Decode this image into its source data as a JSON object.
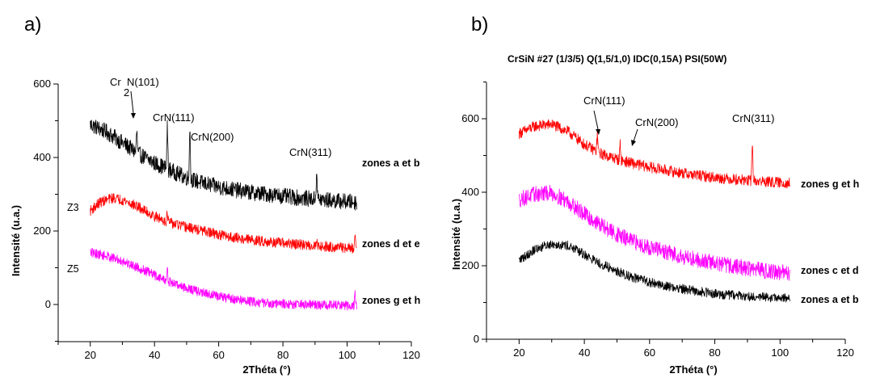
{
  "chart_data": [
    {
      "type": "line",
      "panel_label": "a)",
      "title": "",
      "xlabel": "2Théta (°)",
      "ylabel": "Intensité (u.a.)",
      "xlim": [
        10,
        120
      ],
      "ylim": [
        -100,
        600
      ],
      "x_ticks": [
        20,
        40,
        60,
        80,
        100,
        120
      ],
      "y_ticks": [
        0,
        200,
        400,
        600
      ],
      "grid": false,
      "legend": "none",
      "series": [
        {
          "name": "zones a et b",
          "color": "#000000",
          "x_range": [
            20,
            103
          ],
          "points": [
            [
              20,
              490
            ],
            [
              25,
              470
            ],
            [
              30,
              440
            ],
            [
              35,
              410
            ],
            [
              40,
              385
            ],
            [
              45,
              365
            ],
            [
              50,
              345
            ],
            [
              55,
              330
            ],
            [
              60,
              320
            ],
            [
              65,
              312
            ],
            [
              70,
              305
            ],
            [
              75,
              300
            ],
            [
              80,
              295
            ],
            [
              85,
              290
            ],
            [
              90,
              287
            ],
            [
              95,
              283
            ],
            [
              100,
              280
            ],
            [
              103,
              278
            ]
          ],
          "noise": 22,
          "peaks": [
            [
              34.5,
              60
            ],
            [
              44,
              120
            ],
            [
              51,
              150
            ],
            [
              90.5,
              85
            ]
          ]
        },
        {
          "name": "zones d et e",
          "color": "#ff0000",
          "x_range": [
            20,
            103
          ],
          "points": [
            [
              20,
              255
            ],
            [
              23,
              278
            ],
            [
              27,
              290
            ],
            [
              30,
              285
            ],
            [
              35,
              265
            ],
            [
              40,
              240
            ],
            [
              45,
              222
            ],
            [
              50,
              210
            ],
            [
              55,
              200
            ],
            [
              60,
              190
            ],
            [
              65,
              182
            ],
            [
              70,
              176
            ],
            [
              75,
              171
            ],
            [
              80,
              167
            ],
            [
              85,
              163
            ],
            [
              90,
              160
            ],
            [
              95,
              157
            ],
            [
              100,
              154
            ],
            [
              103,
              152
            ]
          ],
          "noise": 14,
          "peaks": [
            [
              44,
              25
            ],
            [
              90.5,
              20
            ],
            [
              102.5,
              40
            ]
          ]
        },
        {
          "name": "zones g et h",
          "color": "#ff00ff",
          "x_range": [
            20,
            103
          ],
          "points": [
            [
              20,
              142
            ],
            [
              25,
              132
            ],
            [
              30,
              118
            ],
            [
              35,
              100
            ],
            [
              40,
              80
            ],
            [
              45,
              60
            ],
            [
              50,
              45
            ],
            [
              55,
              32
            ],
            [
              60,
              22
            ],
            [
              65,
              14
            ],
            [
              70,
              8
            ],
            [
              75,
              4
            ],
            [
              80,
              2
            ],
            [
              85,
              0
            ],
            [
              90,
              -1
            ],
            [
              95,
              -2
            ],
            [
              100,
              -3
            ],
            [
              103,
              -3
            ]
          ],
          "noise": 13,
          "peaks": [
            [
              44,
              30
            ],
            [
              102.5,
              40
            ]
          ]
        }
      ],
      "series_label_pos": [
        [
          300
        ],
        [
          165
        ],
        [
          40
        ]
      ],
      "annotations": [
        "Cr",
        "N(101)",
        "2",
        "CrN(111)",
        "CrN(200)",
        "CrN(311)"
      ],
      "side_labels": [
        "Z3",
        "Z5"
      ]
    },
    {
      "type": "line",
      "panel_label": "b)",
      "title": "CrSiN #27 (1/3/5) Q(1,5/1,0) IDC(0,15A) PSI(50W)",
      "xlabel": "2Théta (°)",
      "ylabel": "Intensité (u.a.)",
      "xlim": [
        10,
        120
      ],
      "ylim": [
        0,
        700
      ],
      "x_ticks": [
        20,
        40,
        60,
        80,
        100,
        120
      ],
      "y_ticks": [
        0,
        200,
        400,
        600
      ],
      "grid": false,
      "legend": "none",
      "series": [
        {
          "name": "zones g et h",
          "color": "#ff0000",
          "x_range": [
            20,
            103
          ],
          "points": [
            [
              20,
              560
            ],
            [
              25,
              580
            ],
            [
              30,
              585
            ],
            [
              35,
              565
            ],
            [
              40,
              530
            ],
            [
              45,
              505
            ],
            [
              50,
              490
            ],
            [
              55,
              478
            ],
            [
              60,
              468
            ],
            [
              65,
              460
            ],
            [
              70,
              452
            ],
            [
              75,
              446
            ],
            [
              80,
              440
            ],
            [
              85,
              436
            ],
            [
              90,
              432
            ],
            [
              95,
              429
            ],
            [
              100,
              426
            ],
            [
              103,
              425
            ]
          ],
          "noise": 15,
          "peaks": [
            [
              44,
              50
            ],
            [
              51,
              45
            ],
            [
              91.5,
              115
            ]
          ]
        },
        {
          "name": "zones c et d",
          "color": "#ff00ff",
          "x_range": [
            20,
            103
          ],
          "points": [
            [
              20,
              380
            ],
            [
              25,
              395
            ],
            [
              30,
              398
            ],
            [
              35,
              375
            ],
            [
              40,
              340
            ],
            [
              45,
              310
            ],
            [
              50,
              285
            ],
            [
              55,
              265
            ],
            [
              60,
              250
            ],
            [
              65,
              237
            ],
            [
              70,
              226
            ],
            [
              75,
              216
            ],
            [
              80,
              208
            ],
            [
              85,
              200
            ],
            [
              90,
              193
            ],
            [
              95,
              187
            ],
            [
              100,
              182
            ],
            [
              103,
              180
            ]
          ],
          "noise": 22,
          "peaks": []
        },
        {
          "name": "zones a et b",
          "color": "#000000",
          "x_range": [
            20,
            103
          ],
          "points": [
            [
              20,
              215
            ],
            [
              25,
              245
            ],
            [
              30,
              260
            ],
            [
              35,
              255
            ],
            [
              40,
              230
            ],
            [
              45,
              205
            ],
            [
              50,
              185
            ],
            [
              55,
              168
            ],
            [
              60,
              155
            ],
            [
              65,
              145
            ],
            [
              70,
              137
            ],
            [
              75,
              130
            ],
            [
              80,
              124
            ],
            [
              85,
              120
            ],
            [
              90,
              117
            ],
            [
              95,
              114
            ],
            [
              100,
              112
            ],
            [
              103,
              110
            ]
          ],
          "noise": 13,
          "peaks": []
        }
      ],
      "series_label_pos": [
        [
          420
        ],
        [
          185
        ],
        [
          110
        ]
      ],
      "annotations": [
        "CrN(111)",
        "CrN(200)",
        "CrN(311)"
      ]
    }
  ]
}
